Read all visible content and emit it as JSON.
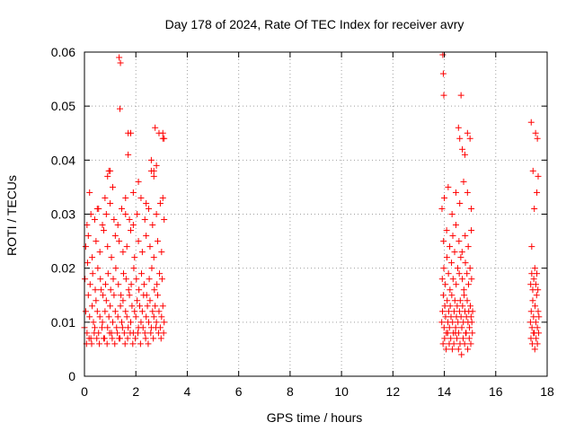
{
  "chart_data": {
    "type": "scatter",
    "title": "Day 178 of 2024, Rate Of TEC Index for receiver avry",
    "xlabel": "GPS time / hours",
    "ylabel": "ROTI / TECUs",
    "xlim": [
      0,
      18
    ],
    "ylim": [
      0,
      0.06
    ],
    "xticks": [
      0,
      2,
      4,
      6,
      8,
      10,
      12,
      14,
      16,
      18
    ],
    "xtick_labels": [
      "0",
      "2",
      "4",
      "6",
      "8",
      "10",
      "12",
      "14",
      "16",
      "18"
    ],
    "yticks": [
      0,
      0.01,
      0.02,
      0.03,
      0.04,
      0.05,
      0.06
    ],
    "ytick_labels": [
      "0",
      "0.01",
      "0.02",
      "0.03",
      "0.04",
      "0.05",
      "0.06"
    ],
    "grid": true,
    "marker": "+",
    "color": "#ff0000",
    "series": [
      {
        "name": "ROTI",
        "x": [
          0.0,
          0.05,
          0.1,
          0.15,
          0.2,
          0.25,
          0.3,
          0.35,
          0.4,
          0.45,
          0.5,
          0.55,
          0.6,
          0.65,
          0.7,
          0.75,
          0.8,
          0.85,
          0.9,
          0.95,
          1.0,
          1.05,
          1.1,
          1.15,
          1.2,
          1.25,
          1.3,
          1.35,
          1.4,
          1.45,
          1.5,
          1.55,
          1.6,
          1.65,
          1.7,
          1.75,
          1.8,
          1.85,
          1.9,
          1.95,
          2.0,
          2.05,
          2.1,
          2.15,
          2.2,
          2.25,
          2.3,
          2.35,
          2.4,
          2.45,
          2.5,
          2.55,
          2.6,
          2.65,
          2.7,
          2.75,
          2.8,
          2.85,
          2.9,
          2.95,
          3.0,
          3.05,
          3.1,
          0.02,
          0.12,
          0.22,
          0.32,
          0.42,
          0.52,
          0.62,
          0.72,
          0.82,
          0.92,
          1.02,
          1.12,
          1.22,
          1.32,
          1.42,
          1.52,
          1.62,
          1.72,
          1.82,
          1.92,
          2.02,
          2.12,
          2.22,
          2.32,
          2.42,
          2.52,
          2.62,
          2.72,
          2.82,
          2.92,
          3.02,
          0.08,
          0.18,
          0.28,
          0.38,
          0.48,
          0.58,
          0.68,
          0.78,
          0.88,
          0.98,
          1.08,
          1.18,
          1.28,
          1.38,
          1.48,
          1.58,
          1.68,
          1.78,
          1.88,
          1.98,
          2.08,
          2.18,
          2.28,
          2.38,
          2.48,
          2.58,
          2.68,
          2.78,
          2.88,
          2.98,
          3.08,
          0.05,
          0.15,
          0.3,
          0.45,
          0.6,
          0.75,
          0.9,
          1.05,
          1.2,
          1.35,
          1.5,
          1.65,
          1.8,
          1.95,
          2.1,
          2.25,
          2.4,
          2.55,
          2.7,
          2.85,
          3.0,
          0.1,
          0.25,
          0.4,
          0.55,
          0.7,
          0.85,
          1.0,
          1.15,
          1.3,
          1.45,
          1.6,
          1.75,
          1.9,
          2.05,
          2.2,
          2.35,
          2.5,
          2.65,
          2.8,
          2.95,
          3.1,
          0.2,
          0.5,
          0.8,
          0.95,
          1.1,
          1.6,
          1.9,
          2.1,
          2.4,
          2.6,
          2.7,
          2.8,
          3.05,
          0.9,
          1.0,
          1.7,
          1.8,
          2.6,
          2.75,
          2.9,
          3.05,
          1.35,
          1.4,
          1.38,
          1.7,
          2.7,
          3.05,
          3.1,
          13.9,
          13.93,
          13.96,
          13.99,
          14.02,
          14.05,
          14.08,
          14.11,
          14.14,
          14.17,
          14.2,
          14.23,
          14.26,
          14.29,
          14.32,
          14.35,
          14.38,
          14.41,
          14.44,
          14.47,
          14.5,
          14.53,
          14.56,
          14.59,
          14.62,
          14.65,
          14.68,
          14.71,
          14.74,
          14.77,
          14.8,
          14.83,
          14.86,
          14.89,
          14.92,
          14.95,
          14.98,
          15.01,
          15.04,
          15.07,
          15.1,
          13.92,
          13.98,
          14.04,
          14.1,
          14.16,
          14.22,
          14.28,
          14.34,
          14.4,
          14.46,
          14.52,
          14.58,
          14.64,
          14.7,
          14.76,
          14.82,
          14.88,
          14.94,
          15.0,
          15.06,
          13.95,
          14.01,
          14.07,
          14.13,
          14.19,
          14.25,
          14.31,
          14.37,
          14.43,
          14.49,
          14.55,
          14.61,
          14.67,
          14.73,
          14.79,
          14.85,
          14.91,
          14.97,
          15.03,
          15.09,
          13.97,
          14.09,
          14.21,
          14.33,
          14.45,
          14.57,
          14.69,
          14.81,
          14.93,
          15.05,
          13.91,
          14.0,
          14.15,
          14.3,
          14.45,
          14.6,
          14.75,
          14.9,
          15.05,
          13.94,
          13.96,
          13.98,
          14.6,
          14.7,
          14.8,
          14.9,
          15.0,
          14.65,
          14.55,
          17.35,
          17.38,
          17.41,
          17.44,
          17.47,
          17.5,
          17.53,
          17.56,
          17.59,
          17.62,
          17.65,
          17.68,
          17.36,
          17.4,
          17.44,
          17.48,
          17.52,
          17.56,
          17.6,
          17.64,
          17.37,
          17.42,
          17.47,
          17.52,
          17.57,
          17.62,
          17.67,
          17.4,
          17.5,
          17.6,
          17.45,
          17.55,
          17.65,
          17.38,
          17.62
        ],
        "y": [
          0.009,
          0.012,
          0.008,
          0.015,
          0.011,
          0.007,
          0.013,
          0.01,
          0.009,
          0.014,
          0.012,
          0.008,
          0.011,
          0.016,
          0.01,
          0.007,
          0.012,
          0.014,
          0.009,
          0.011,
          0.013,
          0.008,
          0.01,
          0.015,
          0.012,
          0.009,
          0.011,
          0.007,
          0.013,
          0.01,
          0.014,
          0.008,
          0.012,
          0.011,
          0.009,
          0.015,
          0.01,
          0.013,
          0.008,
          0.012,
          0.011,
          0.014,
          0.009,
          0.013,
          0.01,
          0.012,
          0.015,
          0.008,
          0.011,
          0.013,
          0.01,
          0.014,
          0.009,
          0.012,
          0.011,
          0.013,
          0.01,
          0.015,
          0.012,
          0.009,
          0.011,
          0.013,
          0.01,
          0.018,
          0.021,
          0.017,
          0.019,
          0.016,
          0.02,
          0.018,
          0.015,
          0.017,
          0.019,
          0.016,
          0.018,
          0.02,
          0.017,
          0.015,
          0.019,
          0.018,
          0.016,
          0.017,
          0.02,
          0.018,
          0.016,
          0.019,
          0.017,
          0.015,
          0.018,
          0.02,
          0.016,
          0.017,
          0.019,
          0.018,
          0.006,
          0.007,
          0.006,
          0.008,
          0.007,
          0.006,
          0.009,
          0.007,
          0.006,
          0.008,
          0.007,
          0.006,
          0.008,
          0.007,
          0.009,
          0.006,
          0.007,
          0.008,
          0.006,
          0.007,
          0.008,
          0.006,
          0.009,
          0.007,
          0.006,
          0.008,
          0.007,
          0.009,
          0.008,
          0.007,
          0.008,
          0.024,
          0.026,
          0.022,
          0.025,
          0.023,
          0.027,
          0.024,
          0.022,
          0.026,
          0.025,
          0.023,
          0.024,
          0.027,
          0.022,
          0.025,
          0.023,
          0.026,
          0.024,
          0.022,
          0.025,
          0.023,
          0.028,
          0.03,
          0.029,
          0.031,
          0.028,
          0.03,
          0.032,
          0.029,
          0.028,
          0.031,
          0.03,
          0.029,
          0.028,
          0.03,
          0.033,
          0.029,
          0.031,
          0.028,
          0.03,
          0.032,
          0.029,
          0.034,
          0.031,
          0.033,
          0.038,
          0.035,
          0.033,
          0.034,
          0.036,
          0.032,
          0.038,
          0.037,
          0.039,
          0.033,
          0.037,
          0.038,
          0.041,
          0.045,
          0.04,
          0.046,
          0.045,
          0.044,
          0.059,
          0.058,
          0.0495,
          0.045,
          0.038,
          0.045,
          0.044,
          0.01,
          0.012,
          0.015,
          0.009,
          0.013,
          0.011,
          0.008,
          0.014,
          0.01,
          0.012,
          0.009,
          0.013,
          0.011,
          0.015,
          0.01,
          0.008,
          0.012,
          0.014,
          0.009,
          0.011,
          0.013,
          0.01,
          0.008,
          0.012,
          0.014,
          0.011,
          0.009,
          0.013,
          0.01,
          0.015,
          0.012,
          0.008,
          0.011,
          0.014,
          0.01,
          0.012,
          0.009,
          0.013,
          0.011,
          0.01,
          0.012,
          0.018,
          0.02,
          0.017,
          0.022,
          0.019,
          0.016,
          0.021,
          0.018,
          0.023,
          0.017,
          0.02,
          0.019,
          0.022,
          0.018,
          0.016,
          0.021,
          0.019,
          0.017,
          0.02,
          0.018,
          0.006,
          0.007,
          0.005,
          0.008,
          0.006,
          0.007,
          0.005,
          0.006,
          0.008,
          0.007,
          0.005,
          0.006,
          0.004,
          0.007,
          0.006,
          0.008,
          0.005,
          0.007,
          0.006,
          0.008,
          0.025,
          0.027,
          0.024,
          0.026,
          0.028,
          0.025,
          0.023,
          0.026,
          0.024,
          0.027,
          0.031,
          0.033,
          0.035,
          0.03,
          0.034,
          0.032,
          0.036,
          0.034,
          0.031,
          0.0595,
          0.056,
          0.052,
          0.044,
          0.042,
          0.041,
          0.045,
          0.044,
          0.052,
          0.046,
          0.01,
          0.012,
          0.009,
          0.014,
          0.011,
          0.008,
          0.013,
          0.01,
          0.015,
          0.009,
          0.012,
          0.011,
          0.017,
          0.019,
          0.016,
          0.018,
          0.02,
          0.017,
          0.019,
          0.016,
          0.007,
          0.006,
          0.008,
          0.005,
          0.007,
          0.006,
          0.008,
          0.024,
          0.031,
          0.034,
          0.038,
          0.045,
          0.037,
          0.047,
          0.044
        ]
      }
    ]
  }
}
